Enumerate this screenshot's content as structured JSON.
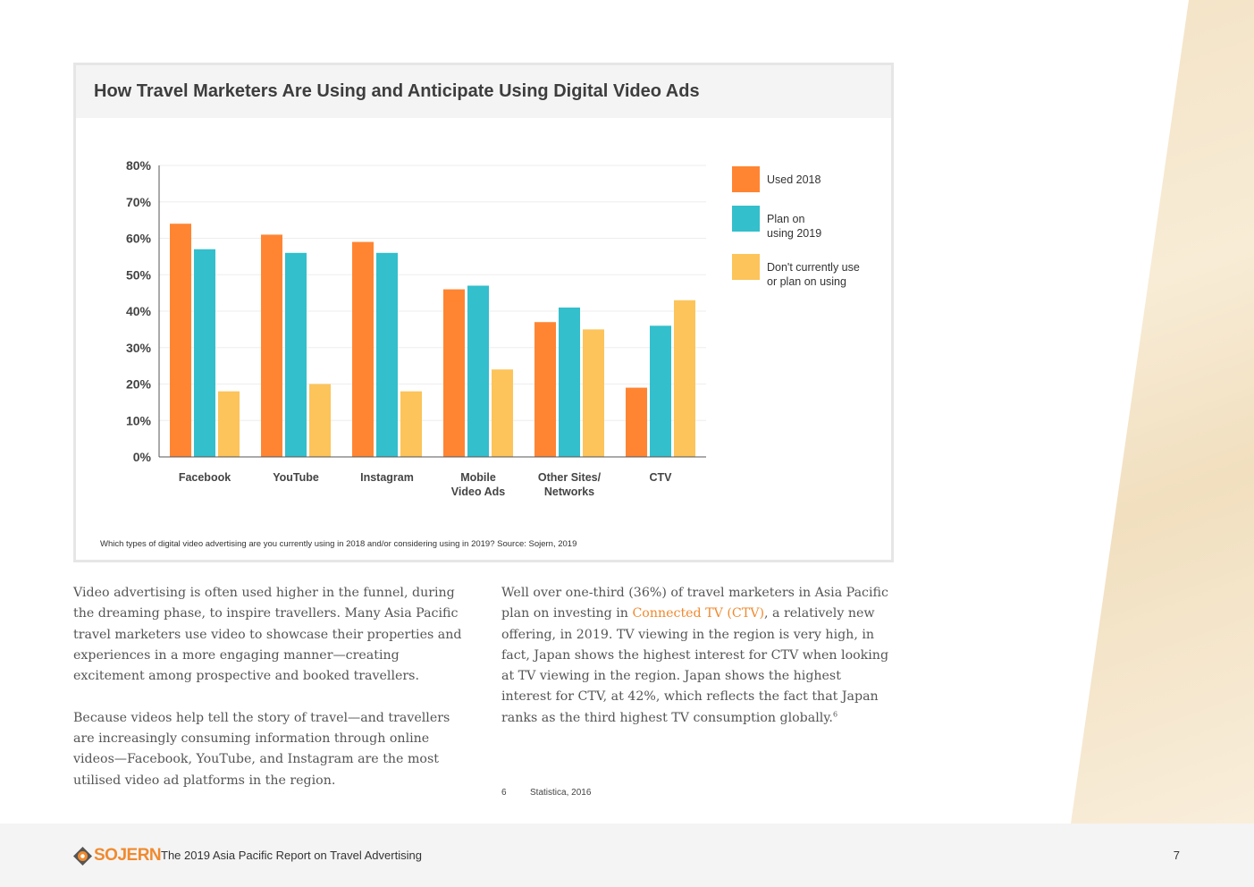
{
  "chart": {
    "title": "How Travel Marketers Are Using and Anticipate Using Digital Video Ads",
    "note": "Which types of digital video advertising are you currently using in 2018 and/or considering using in 2019? Source: Sojern, 2019"
  },
  "chart_data": {
    "type": "bar",
    "title": "How Travel Marketers Are Using and Anticipate Using Digital Video Ads",
    "categories": [
      "Facebook",
      "YouTube",
      "Instagram",
      "Mobile\nVideo Ads",
      "Other Sites/\nNetworks",
      "CTV"
    ],
    "series": [
      {
        "name": "Used 2018",
        "color": "#ff8533",
        "values": [
          64,
          61,
          59,
          46,
          37,
          19
        ]
      },
      {
        "name": "Plan on\nusing 2019",
        "color": "#33bfcc",
        "values": [
          57,
          56,
          56,
          47,
          41,
          36
        ]
      },
      {
        "name": "Don't currently use\nor plan on using",
        "color": "#fcc45a",
        "values": [
          18,
          20,
          18,
          24,
          35,
          43
        ]
      }
    ],
    "yticks": [
      "0%",
      "10%",
      "20%",
      "30%",
      "40%",
      "50%",
      "60%",
      "70%",
      "80%"
    ],
    "ylim": [
      0,
      80
    ],
    "grid": true,
    "legend_position": "right"
  },
  "body": {
    "left_p1": "Video advertising is often used higher in the funnel, during the dreaming phase, to inspire travellers. Many Asia Pacific travel marketers use video to showcase their properties and experiences in a more engaging manner—creating excitement among prospective and booked travellers.",
    "left_p2": "Because videos help tell the story of travel—and travellers are increasingly consuming information through online videos—Facebook, YouTube, and Instagram are the most utilised video ad platforms in the region.",
    "right_pre": "Well over one-third (36%) of travel marketers in Asia Pacific plan on investing in ",
    "right_link": "Connected TV (CTV)",
    "right_post": ", a relatively new offering, in 2019. TV viewing in the region is very high, in fact, Japan shows the highest interest for CTV when looking at TV viewing in the region. Japan shows the highest interest for CTV, at 42%, which reflects the fact that Japan ranks as the third highest TV consumption globally.",
    "right_sup": "6"
  },
  "footnote": {
    "number": "6",
    "text": "Statistica, 2016"
  },
  "footer": {
    "logo_text": "SOJERN",
    "title": "The 2019 Asia Pacific Report on Travel Advertising",
    "page": "7",
    "accent": "#f08a2e"
  },
  "icons": {
    "logo": "compass-icon"
  }
}
